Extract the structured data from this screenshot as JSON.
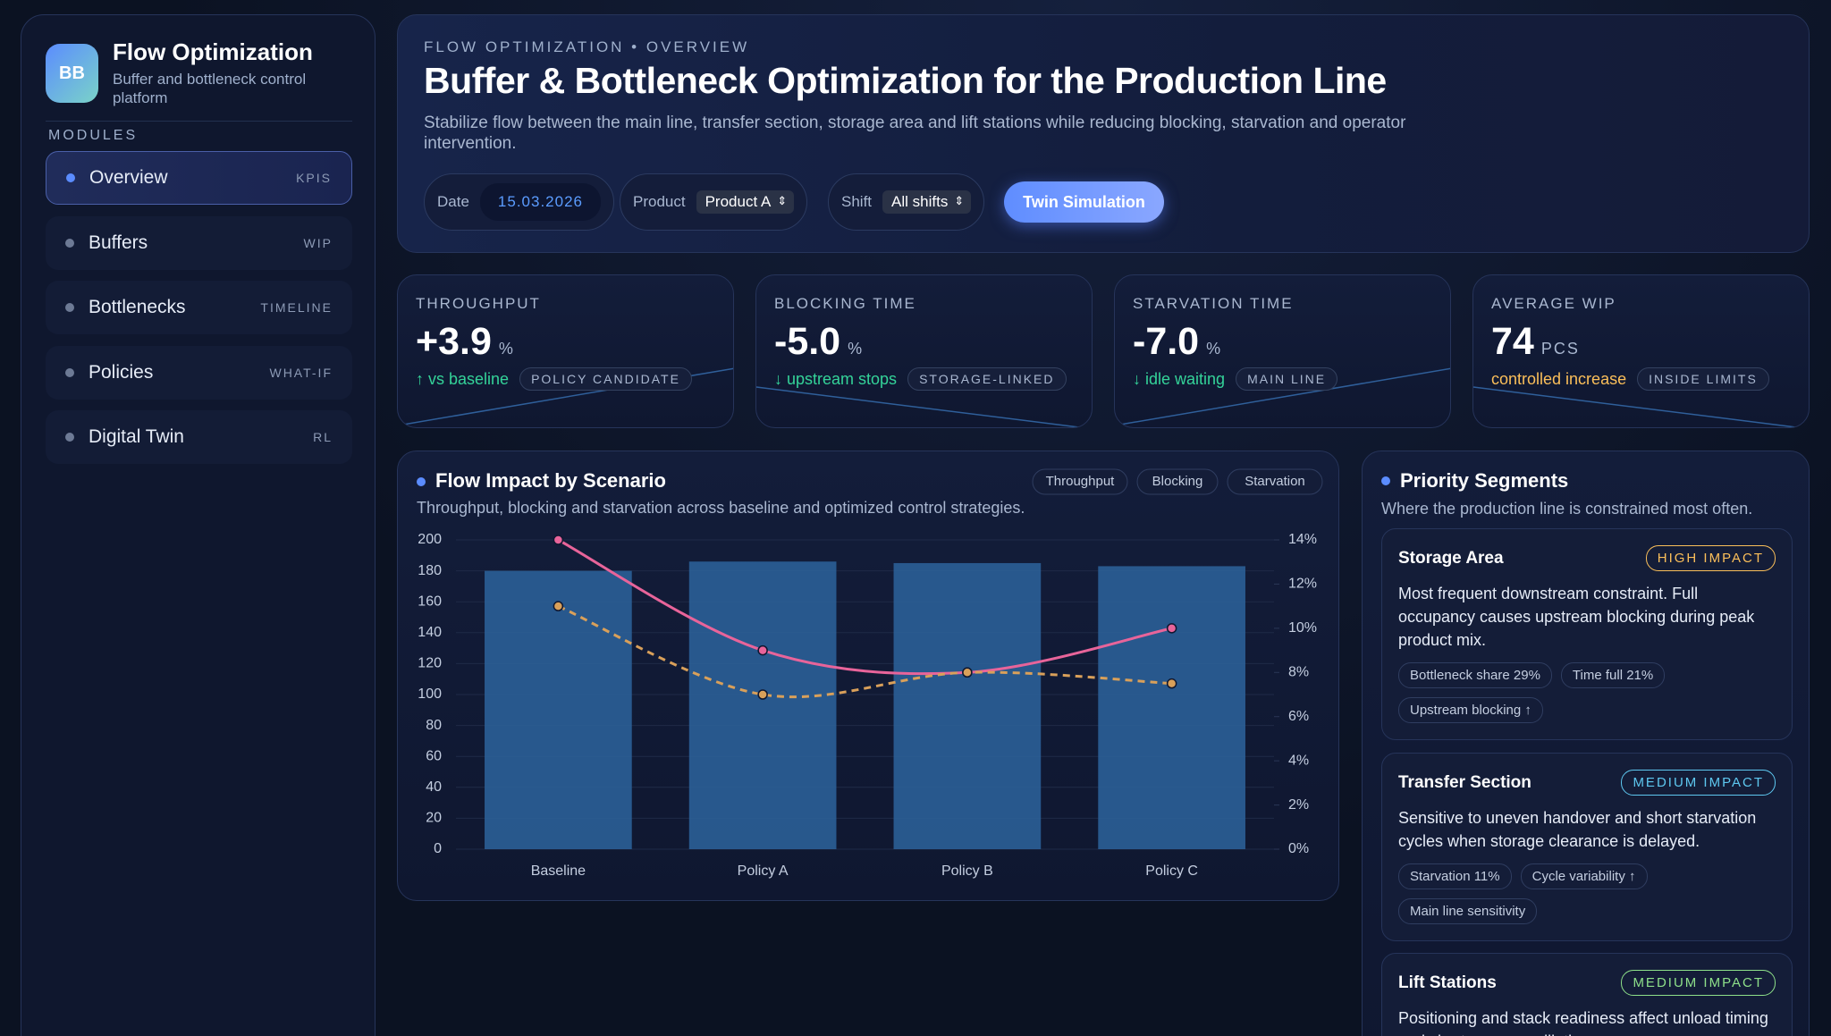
{
  "sidebar": {
    "brand": {
      "initials": "BB",
      "title": "Flow Optimization",
      "subtitle": "Buffer and bottleneck control platform"
    },
    "modules_label": "MODULES",
    "nav": [
      {
        "label": "Overview",
        "tag": "KPIS"
      },
      {
        "label": "Buffers",
        "tag": "WIP"
      },
      {
        "label": "Bottlenecks",
        "tag": "TIMELINE"
      },
      {
        "label": "Policies",
        "tag": "WHAT-IF"
      },
      {
        "label": "Digital Twin",
        "tag": "RL"
      }
    ]
  },
  "header": {
    "eyebrow": "FLOW OPTIMIZATION • OVERVIEW",
    "title": "Buffer & Bottleneck Optimization for the Production Line",
    "description": "Stabilize flow between the main line, transfer section, storage area and lift stations while reducing blocking, starvation and operator intervention.",
    "filters": [
      {
        "label": "Date",
        "value": "15.03.2026"
      },
      {
        "label": "Product",
        "value": "Product A"
      },
      {
        "label": "Shift",
        "value": "All shifts"
      }
    ],
    "button": "Twin Simulation"
  },
  "kpis": [
    {
      "label": "THROUGHPUT",
      "value": "+3.9",
      "unit": "%",
      "note": "↑ vs baseline",
      "note_color": "#34d399",
      "badge": "POLICY CANDIDATE"
    },
    {
      "label": "BLOCKING TIME",
      "value": "-5.0",
      "unit": "%",
      "note": "↓ upstream stops",
      "note_color": "#34d399",
      "badge": "STORAGE-LINKED"
    },
    {
      "label": "STARVATION TIME",
      "value": "-7.0",
      "unit": "%",
      "note": "↓ idle waiting",
      "note_color": "#34d399",
      "badge": "MAIN LINE"
    },
    {
      "label": "AVERAGE WIP",
      "value": "74",
      "unit": "PCS",
      "note": "controlled increase",
      "note_color": "#fbbf5a",
      "badge": "INSIDE LIMITS"
    }
  ],
  "chart_data": {
    "type": "bar",
    "title": "Flow Impact by Scenario",
    "subtitle": "Throughput, blocking and starvation across baseline and optimized control strategies.",
    "categories": [
      "Baseline",
      "Policy A",
      "Policy B",
      "Policy C"
    ],
    "series": [
      {
        "name": "Throughput",
        "kind": "bar",
        "color": "#2b5f97",
        "values": [
          180,
          186,
          185,
          183
        ]
      },
      {
        "name": "Blocking",
        "kind": "line",
        "axis": "y2",
        "color": "#e8649a",
        "values": [
          14,
          9,
          8,
          10
        ]
      },
      {
        "name": "Starvation",
        "kind": "line",
        "axis": "y2",
        "dashed": true,
        "color": "#d9a05a",
        "values": [
          11,
          7,
          8,
          7.5
        ]
      }
    ],
    "ylim": [
      0,
      200
    ],
    "yticks": [
      0,
      20,
      40,
      60,
      80,
      100,
      120,
      140,
      160,
      180,
      200
    ],
    "y2lim": [
      0,
      14
    ],
    "y2ticks": [
      {
        "value": 0,
        "label": "0%"
      },
      {
        "value": 2,
        "label": "2%"
      },
      {
        "value": 4,
        "label": "4%"
      },
      {
        "value": 6,
        "label": "6%"
      },
      {
        "value": 8,
        "label": "8%"
      },
      {
        "value": 10,
        "label": "10%"
      },
      {
        "value": 12,
        "label": "12%"
      },
      {
        "value": 14,
        "label": "14%"
      }
    ],
    "grid": true,
    "legend": "top-right"
  },
  "priority": {
    "title": "Priority Segments",
    "subtitle": "Where the production line is constrained most often.",
    "segments": [
      {
        "name": "Storage Area",
        "impact": "HIGH IMPACT",
        "impact_color": "#fbbf5a",
        "text": "Most frequent downstream constraint. Full occupancy causes upstream blocking during peak product mix.",
        "tags": [
          "Bottleneck share 29%",
          "Time full 21%",
          "Upstream blocking ↑"
        ]
      },
      {
        "name": "Transfer Section",
        "impact": "MEDIUM IMPACT",
        "impact_color": "#5ec8f0",
        "text": "Sensitive to uneven handover and short starvation cycles when storage clearance is delayed.",
        "tags": [
          "Starvation 11%",
          "Cycle variability ↑",
          "Main line sensitivity"
        ]
      },
      {
        "name": "Lift Stations",
        "impact": "MEDIUM IMPACT",
        "impact_color": "#8ee08a",
        "text": "Positioning and stack readiness affect unload timing and short queue oscillations.",
        "tags": []
      }
    ]
  }
}
